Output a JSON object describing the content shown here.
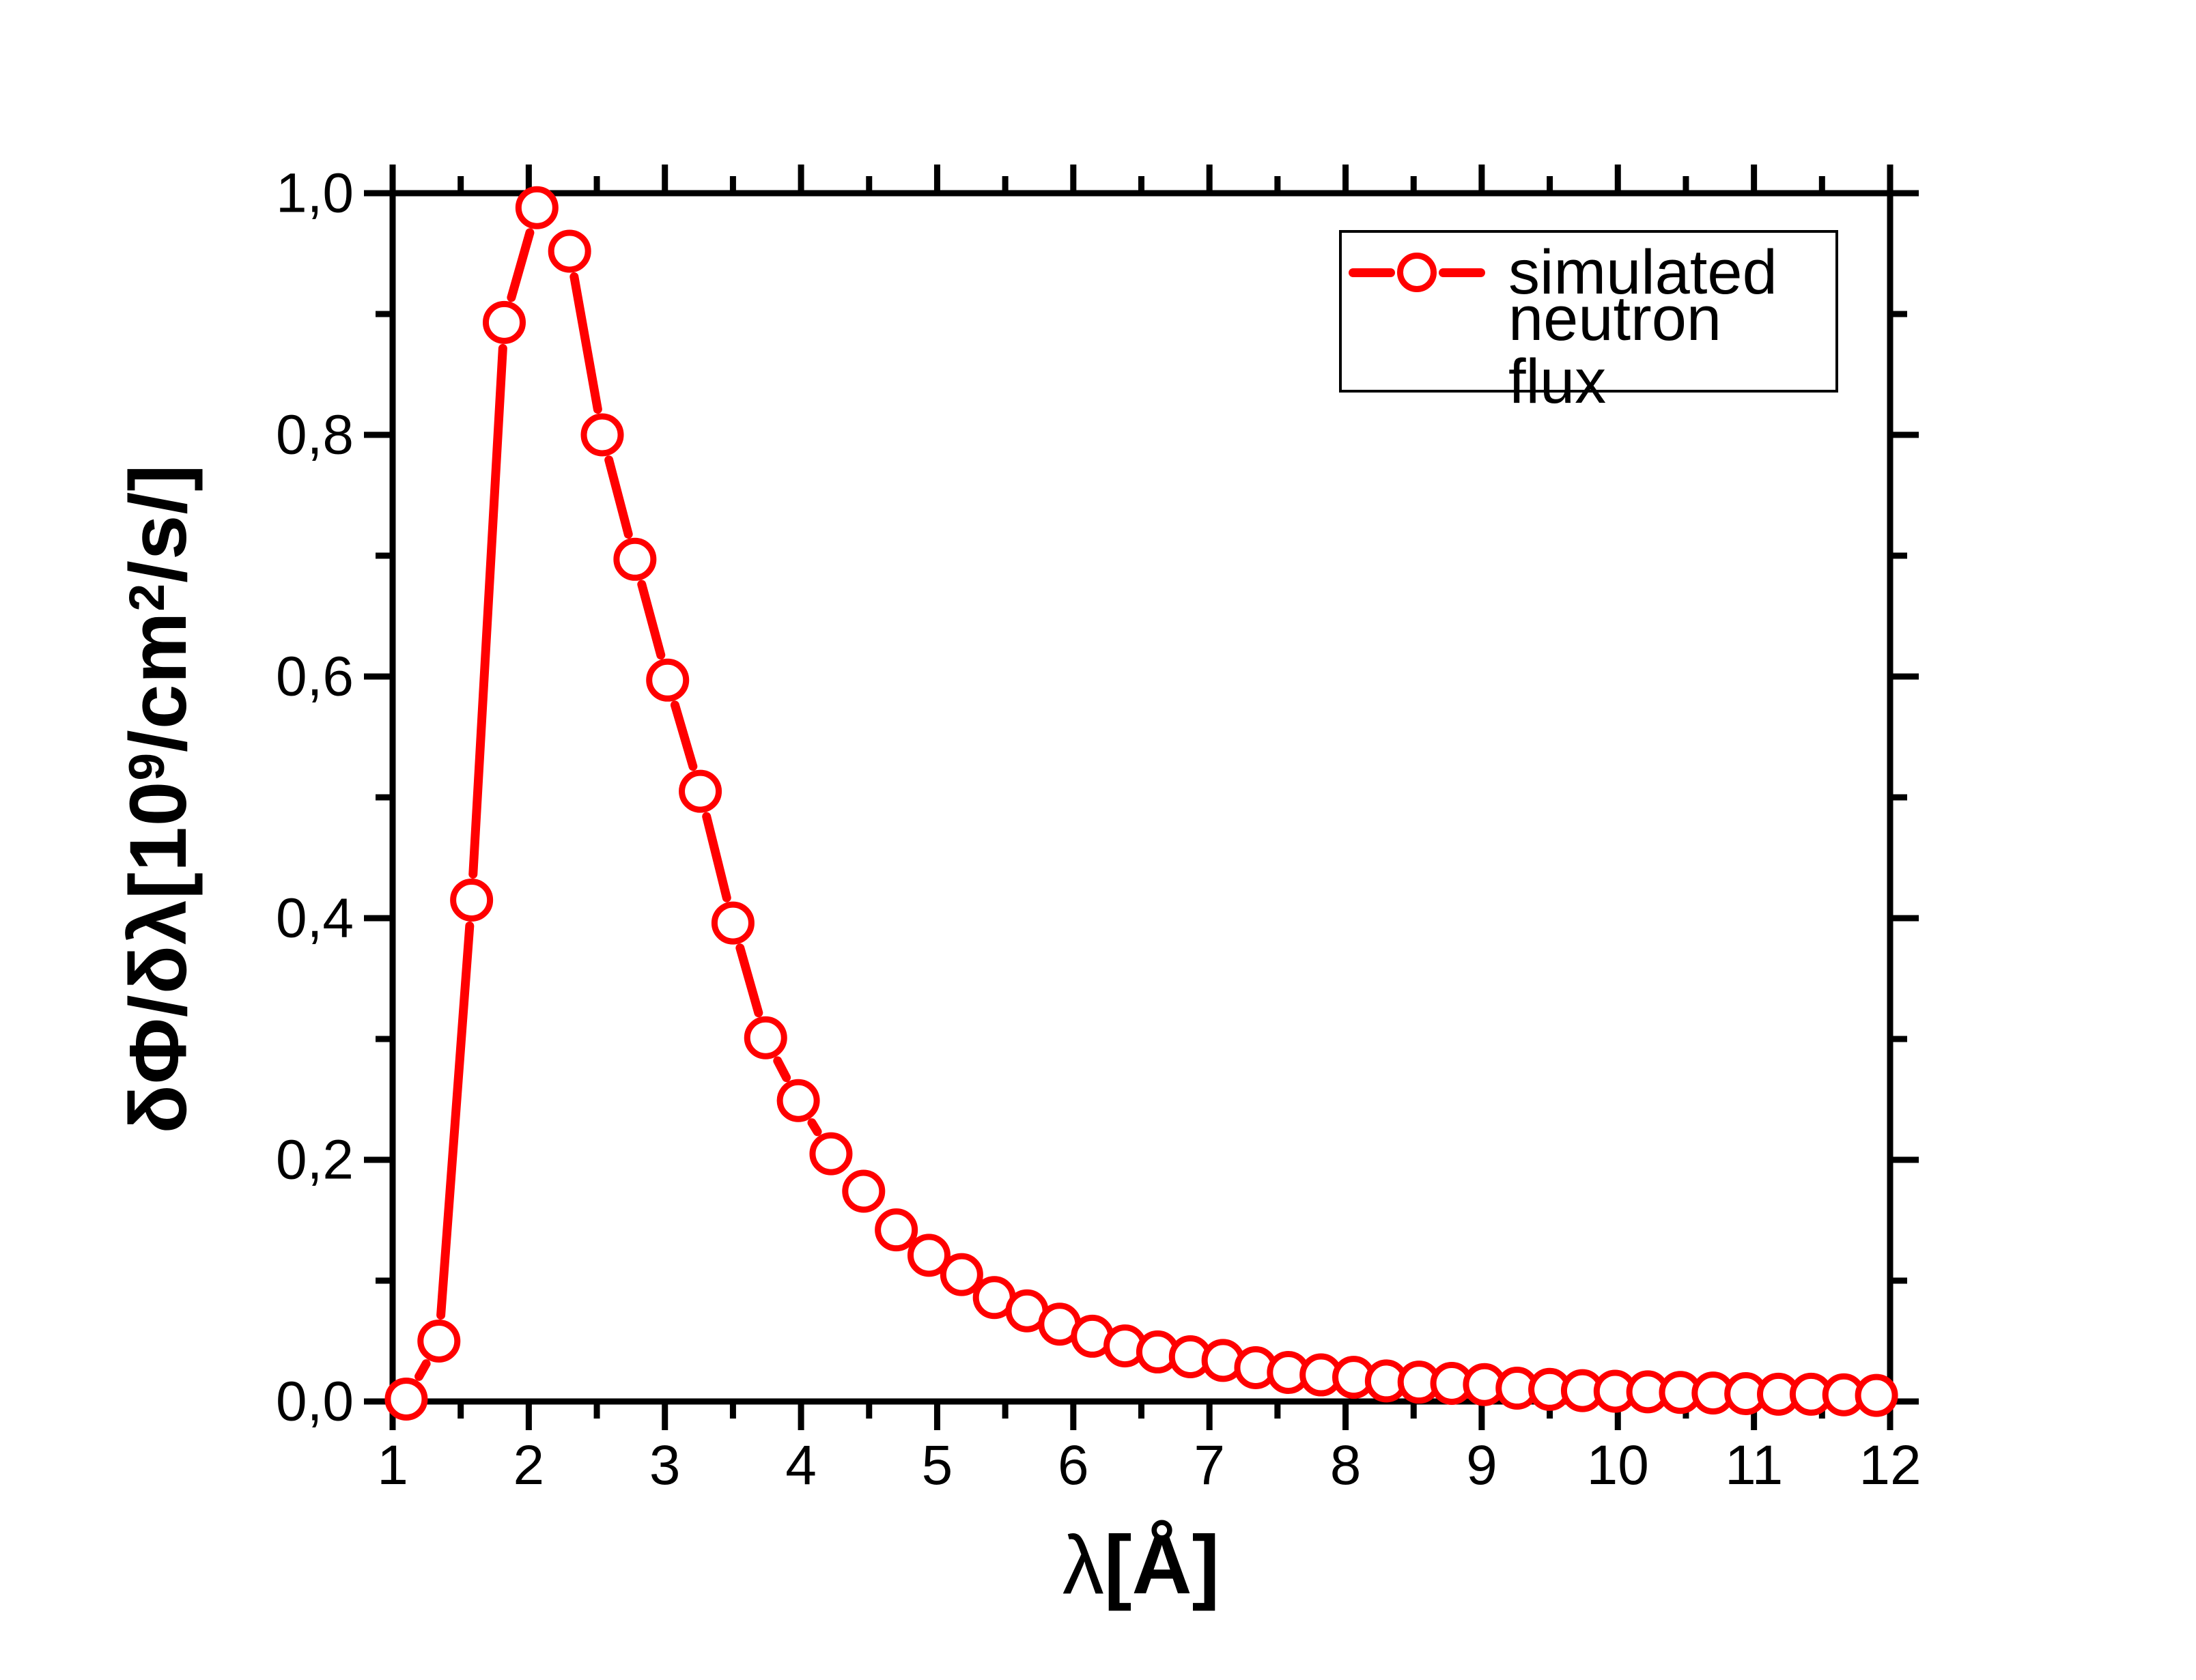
{
  "figure": {
    "background": "#ffffff",
    "accent_color": "#ff0000",
    "axis_color": "#000000"
  },
  "axes": {
    "x": {
      "title_lambda": "λ",
      "title_unit": "[Å]",
      "tick_labels": [
        "1",
        "2",
        "3",
        "4",
        "5",
        "6",
        "7",
        "8",
        "9",
        "10",
        "11",
        "12"
      ]
    },
    "y": {
      "title_prefix": "δΦ/δλ[10",
      "title_sup1": "9",
      "title_mid": "/cm",
      "title_sup2": "2",
      "title_suffix": "/s/]",
      "tick_labels": [
        "0,0",
        "0,2",
        "0,4",
        "0,6",
        "0,8",
        "1,0"
      ]
    }
  },
  "legend": {
    "line1": "simulated",
    "line2": "neutron flux",
    "symbol": "red-dash-open-circle-dash",
    "border_color": "#000000"
  },
  "chart_data": {
    "type": "line",
    "title": "",
    "xlabel": "λ[Å]",
    "ylabel": "δΦ/δλ[10⁹/cm²/s/]",
    "xlim": [
      1,
      12
    ],
    "ylim": [
      0.0,
      1.0
    ],
    "grid": false,
    "legend_position": "top-right",
    "x_major_ticks": [
      1,
      2,
      3,
      4,
      5,
      6,
      7,
      8,
      9,
      10,
      11,
      12
    ],
    "x_minor_ticks": [
      1.5,
      2.5,
      3.5,
      4.5,
      5.5,
      6.5,
      7.5,
      8.5,
      9.5,
      10.5,
      11.5
    ],
    "y_major_ticks": [
      0.0,
      0.2,
      0.4,
      0.6,
      0.8,
      1.0
    ],
    "y_minor_ticks": [
      0.1,
      0.3,
      0.5,
      0.7,
      0.9
    ],
    "y_tick_labels": [
      "0,0",
      "0,2",
      "0,4",
      "0,6",
      "0,8",
      "1,0"
    ],
    "y_tick_label_style": "decimal-comma",
    "series": [
      {
        "name": "simulated neutron flux",
        "color": "#ff0000",
        "marker": "open-circle",
        "line_style": "dash-with-symbol-gaps",
        "x": [
          1.1,
          1.34,
          1.58,
          1.82,
          2.06,
          2.3,
          2.54,
          2.78,
          3.02,
          3.26,
          3.5,
          3.74,
          3.98,
          4.22,
          4.46,
          4.7,
          4.94,
          5.18,
          5.42,
          5.66,
          5.9,
          6.14,
          6.38,
          6.62,
          6.86,
          7.1,
          7.34,
          7.58,
          7.82,
          8.06,
          8.3,
          8.54,
          8.78,
          9.02,
          9.26,
          9.5,
          9.74,
          9.98,
          10.22,
          10.46,
          10.7,
          10.94,
          11.18,
          11.42,
          11.66,
          11.9
        ],
        "y": [
          0.002,
          0.05,
          0.415,
          0.893,
          0.988,
          0.952,
          0.8,
          0.697,
          0.597,
          0.505,
          0.396,
          0.301,
          0.249,
          0.205,
          0.174,
          0.142,
          0.121,
          0.105,
          0.086,
          0.075,
          0.064,
          0.054,
          0.046,
          0.041,
          0.037,
          0.034,
          0.028,
          0.024,
          0.022,
          0.02,
          0.017,
          0.016,
          0.015,
          0.014,
          0.011,
          0.01,
          0.009,
          0.0085,
          0.008,
          0.0075,
          0.007,
          0.0065,
          0.006,
          0.006,
          0.0055,
          0.005
        ]
      }
    ]
  }
}
